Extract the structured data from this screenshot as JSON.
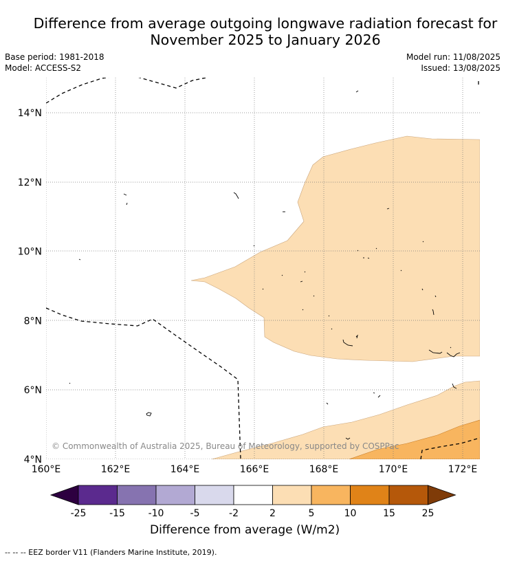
{
  "title": {
    "line1": "Difference from average outgoing longwave radiation forecast for",
    "line2": "November 2025 to January 2026"
  },
  "meta_left": {
    "base_period": "Base period: 1981-2018",
    "model": "Model: ACCESS-S2"
  },
  "meta_right": {
    "model_run": "Model run: 11/08/2025",
    "issued": "Issued: 13/08/2025"
  },
  "map": {
    "lon_ticks": [
      "160°E",
      "162°E",
      "164°E",
      "166°E",
      "168°E",
      "170°E",
      "172°E"
    ],
    "lat_ticks": [
      "4°N",
      "6°N",
      "8°N",
      "10°N",
      "12°N",
      "14°N"
    ],
    "copyright": "© Commonwealth of Australia 2025, Bureau of Meteorology, supported by COSPPac"
  },
  "colorbar": {
    "title": "Difference from average (W/m2)",
    "labels": [
      "-25",
      "-15",
      "-10",
      "-5",
      "-2",
      "2",
      "5",
      "10",
      "15",
      "25"
    ],
    "colors": {
      "lt_-25": "#2d0040",
      "-25_-15": "#5b2a8e",
      "-15_-10": "#8673b0",
      "-10_-5": "#b2a9d3",
      "-5_-2": "#d9d9ec",
      "-2_2": "#ffffff",
      "2_5": "#fcdeb4",
      "5_10": "#f8b55f",
      "10_15": "#e08318",
      "15_25": "#b5580a",
      "gt_25": "#7f3b08"
    }
  },
  "footer": {
    "legend": "--  --  -- EEZ border V11 (Flanders Marine Institute, 2019)."
  }
}
